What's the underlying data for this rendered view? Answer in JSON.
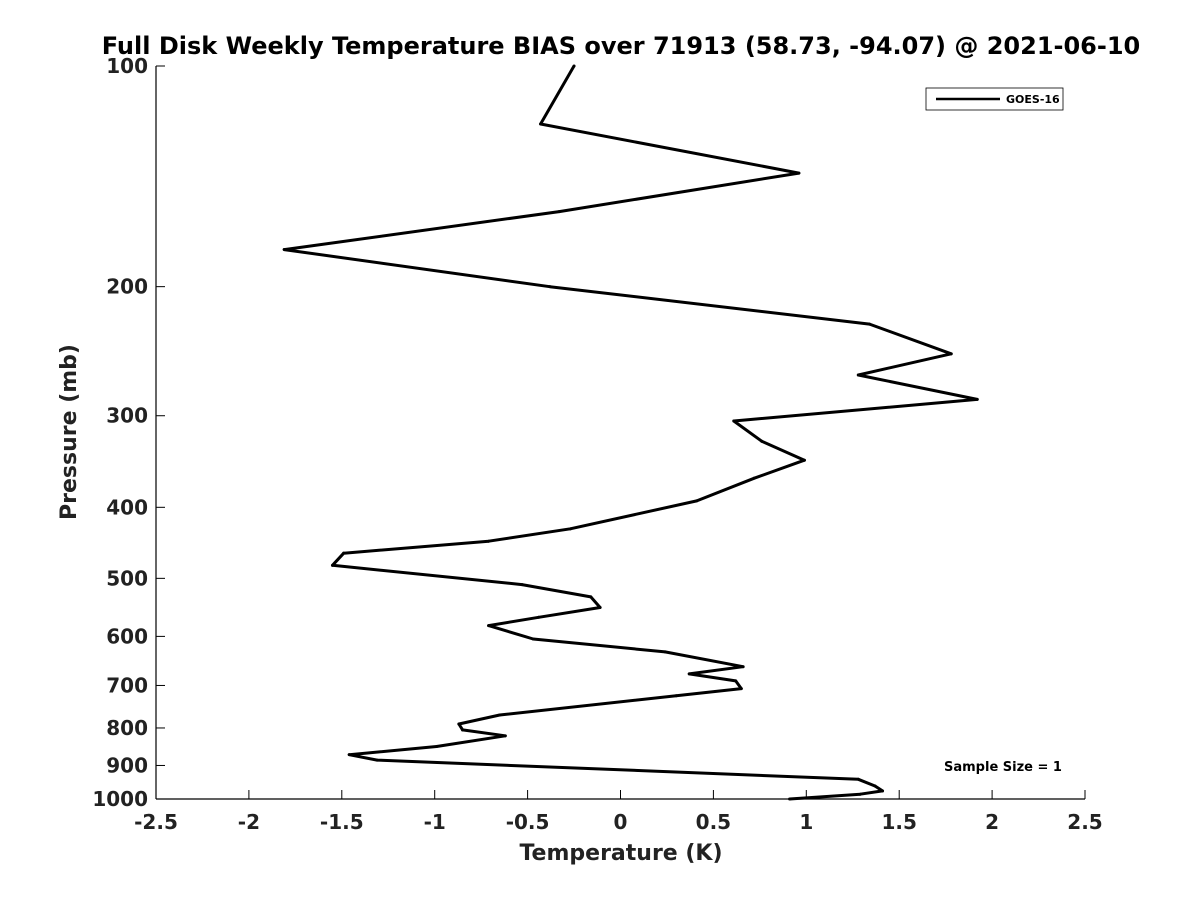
{
  "chart_data": {
    "type": "line",
    "title": "Full Disk Weekly Temperature BIAS over 71913 (58.73, -94.07) @ 2021-06-10",
    "xlabel": "Temperature (K)",
    "ylabel": "Pressure (mb)",
    "xlim": [
      -2.5,
      2.5
    ],
    "ylim": [
      100,
      1000
    ],
    "y_scale": "log",
    "y_reversed": true,
    "grid": false,
    "legend_position": "top-right",
    "x_ticks": [
      -2.5,
      -2,
      -1.5,
      -1,
      -0.5,
      0,
      0.5,
      1,
      1.5,
      2,
      2.5
    ],
    "x_tick_labels": [
      "-2.5",
      "-2",
      "-1.5",
      "-1",
      "-0.5",
      "0",
      "0.5",
      "1",
      "1.5",
      "2",
      "2.5"
    ],
    "y_ticks": [
      100,
      200,
      300,
      400,
      500,
      600,
      700,
      800,
      900,
      1000
    ],
    "y_tick_labels": [
      "100",
      "200",
      "300",
      "400",
      "500",
      "600",
      "700",
      "800",
      "900",
      "1000"
    ],
    "series": [
      {
        "name": "GOES-16",
        "color": "#000000",
        "points": [
          {
            "x": -0.25,
            "y": 100
          },
          {
            "x": -0.43,
            "y": 120
          },
          {
            "x": 0.96,
            "y": 140
          },
          {
            "x": -0.33,
            "y": 158
          },
          {
            "x": -1.81,
            "y": 178
          },
          {
            "x": -0.38,
            "y": 200
          },
          {
            "x": 1.34,
            "y": 225
          },
          {
            "x": 1.78,
            "y": 247
          },
          {
            "x": 1.28,
            "y": 264
          },
          {
            "x": 1.92,
            "y": 285
          },
          {
            "x": 0.61,
            "y": 305
          },
          {
            "x": 0.76,
            "y": 325
          },
          {
            "x": 0.99,
            "y": 345
          },
          {
            "x": 0.72,
            "y": 365
          },
          {
            "x": 0.41,
            "y": 392
          },
          {
            "x": -0.27,
            "y": 428
          },
          {
            "x": -0.71,
            "y": 445
          },
          {
            "x": -1.49,
            "y": 462
          },
          {
            "x": -1.55,
            "y": 480
          },
          {
            "x": -0.53,
            "y": 510
          },
          {
            "x": -0.16,
            "y": 530
          },
          {
            "x": -0.11,
            "y": 548
          },
          {
            "x": -0.44,
            "y": 565
          },
          {
            "x": -0.71,
            "y": 580
          },
          {
            "x": -0.47,
            "y": 605
          },
          {
            "x": 0.24,
            "y": 630
          },
          {
            "x": 0.66,
            "y": 660
          },
          {
            "x": 0.37,
            "y": 675
          },
          {
            "x": 0.62,
            "y": 690
          },
          {
            "x": 0.65,
            "y": 707
          },
          {
            "x": 0.3,
            "y": 723
          },
          {
            "x": -0.65,
            "y": 768
          },
          {
            "x": -0.87,
            "y": 790
          },
          {
            "x": -0.85,
            "y": 805
          },
          {
            "x": -0.62,
            "y": 820
          },
          {
            "x": -0.99,
            "y": 848
          },
          {
            "x": -1.46,
            "y": 870
          },
          {
            "x": -1.31,
            "y": 885
          },
          {
            "x": 1.28,
            "y": 940
          },
          {
            "x": 1.37,
            "y": 960
          },
          {
            "x": 1.41,
            "y": 975
          },
          {
            "x": 1.29,
            "y": 985
          },
          {
            "x": 0.91,
            "y": 1000
          }
        ]
      }
    ],
    "annotations": [
      "Sample Size = 1"
    ]
  }
}
